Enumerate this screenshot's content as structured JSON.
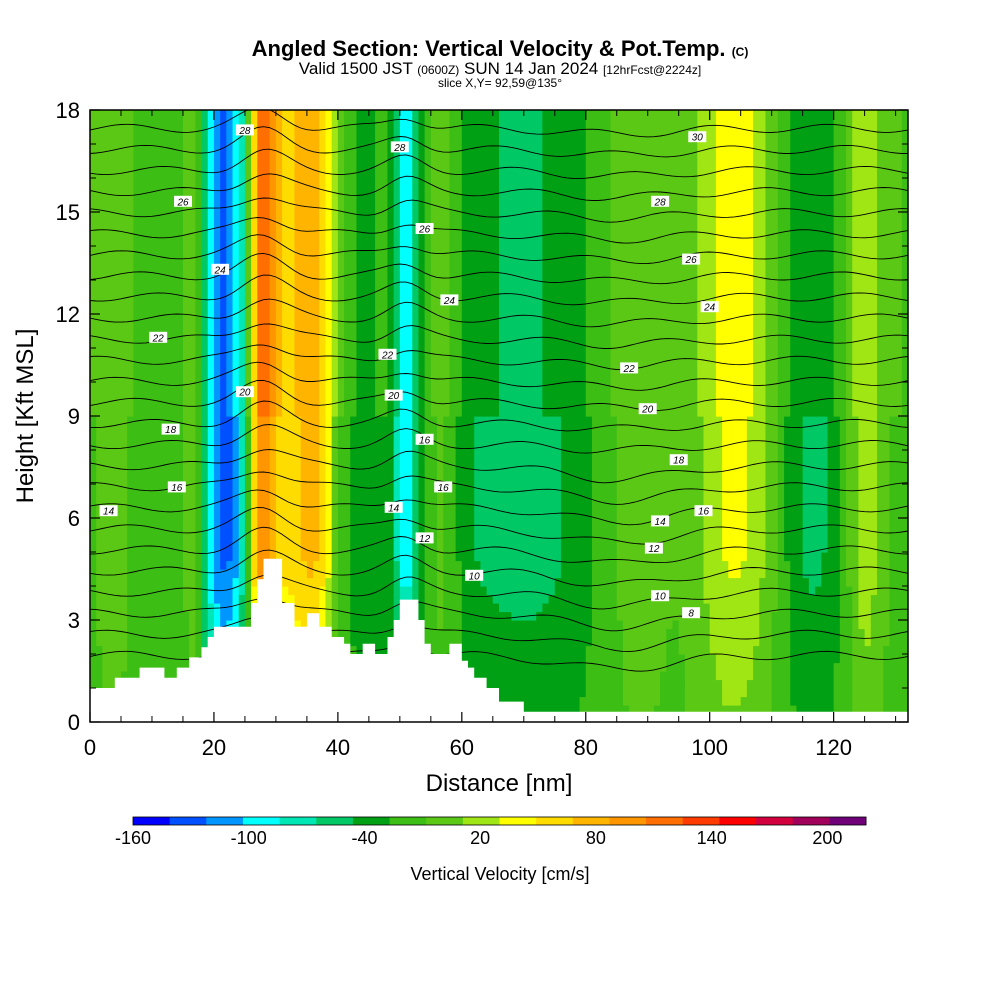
{
  "title": {
    "main": "Angled Section: Vertical Velocity & Pot.Temp.",
    "main_suffix": "(C)",
    "valid_prefix": "Valid 1500 JST",
    "valid_utc": "(0600Z)",
    "valid_date": "SUN 14 Jan 2024",
    "forecast": "[12hrFcst@2224z]",
    "slice": "slice X,Y= 92,59@135°"
  },
  "chart_data": {
    "type": "heatmap",
    "title": "Angled Section: Vertical Velocity & Pot.Temp.",
    "xlabel": "Distance [nm]",
    "ylabel": "Height [Kft MSL]",
    "xlim": [
      0,
      132
    ],
    "ylim": [
      0,
      18
    ],
    "x_ticks": [
      0,
      20,
      40,
      60,
      80,
      100,
      120
    ],
    "y_ticks": [
      0,
      3,
      6,
      9,
      12,
      15,
      18
    ],
    "colorbar": {
      "label": "Vertical Velocity [cm/s]",
      "tick_values": [
        -160,
        -100,
        -40,
        20,
        80,
        140,
        200
      ],
      "colors": [
        "#0000ff",
        "#0050ff",
        "#0096ff",
        "#00ffff",
        "#00e6b4",
        "#00c864",
        "#00a014",
        "#3cbe14",
        "#5ac814",
        "#a0e614",
        "#ffff00",
        "#ffdc00",
        "#ffb400",
        "#ff9600",
        "#ff6e00",
        "#ff3c00",
        "#ff0000",
        "#d2003c",
        "#a0005a",
        "#6e0078"
      ],
      "range": [
        -160,
        220
      ]
    },
    "velocity_columns": [
      {
        "x": 4,
        "w": 3,
        "v": 20
      },
      {
        "x": 9,
        "w": 4,
        "v": -10
      },
      {
        "x": 17,
        "w": 2,
        "v": 40
      },
      {
        "x": 20,
        "w": 3,
        "v": -30
      },
      {
        "x": 23,
        "w": 5,
        "v": -100
      },
      {
        "x": 27.5,
        "w": 2.5,
        "v": 140
      },
      {
        "x": 33,
        "w": 5,
        "v": 70
      },
      {
        "x": 37,
        "w": 3,
        "v": 50
      },
      {
        "x": 43,
        "w": 6,
        "v": -20
      },
      {
        "x": 51,
        "w": 2,
        "v": -70
      },
      {
        "x": 57,
        "w": 3,
        "v": 30
      },
      {
        "x": 62,
        "w": 10,
        "v": -25
      },
      {
        "x": 74,
        "w": 10,
        "v": -30
      },
      {
        "x": 88,
        "w": 6,
        "v": 20
      },
      {
        "x": 96,
        "w": 5,
        "v": -10
      },
      {
        "x": 104,
        "w": 8,
        "v": 50
      },
      {
        "x": 116,
        "w": 6,
        "v": -40
      },
      {
        "x": 125,
        "w": 3,
        "v": 40
      }
    ],
    "contour_labels": [
      {
        "x": 25,
        "y": 17.4,
        "t": "28"
      },
      {
        "x": 50,
        "y": 16.9,
        "t": "28"
      },
      {
        "x": 98,
        "y": 17.2,
        "t": "30"
      },
      {
        "x": 15,
        "y": 15.3,
        "t": "26"
      },
      {
        "x": 92,
        "y": 15.3,
        "t": "28"
      },
      {
        "x": 54,
        "y": 14.5,
        "t": "26"
      },
      {
        "x": 97,
        "y": 13.6,
        "t": "26"
      },
      {
        "x": 21,
        "y": 13.3,
        "t": "24"
      },
      {
        "x": 58,
        "y": 12.4,
        "t": "24"
      },
      {
        "x": 100,
        "y": 12.2,
        "t": "24"
      },
      {
        "x": 11,
        "y": 11.3,
        "t": "22"
      },
      {
        "x": 48,
        "y": 10.8,
        "t": "22"
      },
      {
        "x": 87,
        "y": 10.4,
        "t": "22"
      },
      {
        "x": 25,
        "y": 9.7,
        "t": "20"
      },
      {
        "x": 49,
        "y": 9.6,
        "t": "20"
      },
      {
        "x": 90,
        "y": 9.2,
        "t": "20"
      },
      {
        "x": 13,
        "y": 8.6,
        "t": "18"
      },
      {
        "x": 54,
        "y": 8.3,
        "t": "16"
      },
      {
        "x": 95,
        "y": 7.7,
        "t": "18"
      },
      {
        "x": 14,
        "y": 6.9,
        "t": "16"
      },
      {
        "x": 57,
        "y": 6.9,
        "t": "16"
      },
      {
        "x": 99,
        "y": 6.2,
        "t": "16"
      },
      {
        "x": 3,
        "y": 6.2,
        "t": "14"
      },
      {
        "x": 49,
        "y": 6.3,
        "t": "14"
      },
      {
        "x": 92,
        "y": 5.9,
        "t": "14"
      },
      {
        "x": 54,
        "y": 5.4,
        "t": "12"
      },
      {
        "x": 91,
        "y": 5.1,
        "t": "12"
      },
      {
        "x": 62,
        "y": 4.3,
        "t": "10"
      },
      {
        "x": 92,
        "y": 3.7,
        "t": "10"
      },
      {
        "x": 97,
        "y": 3.2,
        "t": "8"
      }
    ],
    "terrain_profile_kft": [
      [
        0,
        1.0
      ],
      [
        4,
        1.0
      ],
      [
        4,
        1.3
      ],
      [
        8,
        1.3
      ],
      [
        8,
        1.6
      ],
      [
        12,
        1.6
      ],
      [
        12,
        1.3
      ],
      [
        14,
        1.3
      ],
      [
        14,
        1.6
      ],
      [
        16,
        1.6
      ],
      [
        16,
        1.9
      ],
      [
        18,
        1.9
      ],
      [
        18,
        2.2
      ],
      [
        19,
        2.2
      ],
      [
        19,
        2.5
      ],
      [
        20,
        2.5
      ],
      [
        20,
        2.8
      ],
      [
        26,
        2.8
      ],
      [
        26,
        3.5
      ],
      [
        27,
        3.5
      ],
      [
        27,
        4.2
      ],
      [
        28,
        4.2
      ],
      [
        28,
        4.8
      ],
      [
        31,
        4.8
      ],
      [
        31,
        3.5
      ],
      [
        33,
        3.5
      ],
      [
        33,
        2.8
      ],
      [
        35,
        2.8
      ],
      [
        35,
        3.2
      ],
      [
        37,
        3.2
      ],
      [
        37,
        2.8
      ],
      [
        39,
        2.8
      ],
      [
        39,
        2.5
      ],
      [
        41,
        2.5
      ],
      [
        41,
        2.3
      ],
      [
        42,
        2.3
      ],
      [
        42,
        2.0
      ],
      [
        44,
        2.0
      ],
      [
        44,
        2.3
      ],
      [
        46,
        2.3
      ],
      [
        46,
        2.0
      ],
      [
        48,
        2.0
      ],
      [
        48,
        2.5
      ],
      [
        49,
        2.5
      ],
      [
        49,
        3.0
      ],
      [
        50,
        3.0
      ],
      [
        50,
        3.6
      ],
      [
        53,
        3.6
      ],
      [
        53,
        3.0
      ],
      [
        54,
        3.0
      ],
      [
        54,
        2.3
      ],
      [
        55,
        2.3
      ],
      [
        55,
        2.0
      ],
      [
        58,
        2.0
      ],
      [
        58,
        2.3
      ],
      [
        60,
        2.3
      ],
      [
        60,
        1.8
      ],
      [
        61,
        1.8
      ],
      [
        61,
        1.6
      ],
      [
        62,
        1.6
      ],
      [
        62,
        1.3
      ],
      [
        64,
        1.3
      ],
      [
        64,
        1.0
      ],
      [
        66,
        1.0
      ],
      [
        66,
        0.6
      ],
      [
        70,
        0.6
      ],
      [
        70,
        0.3
      ],
      [
        132,
        0.3
      ]
    ]
  }
}
